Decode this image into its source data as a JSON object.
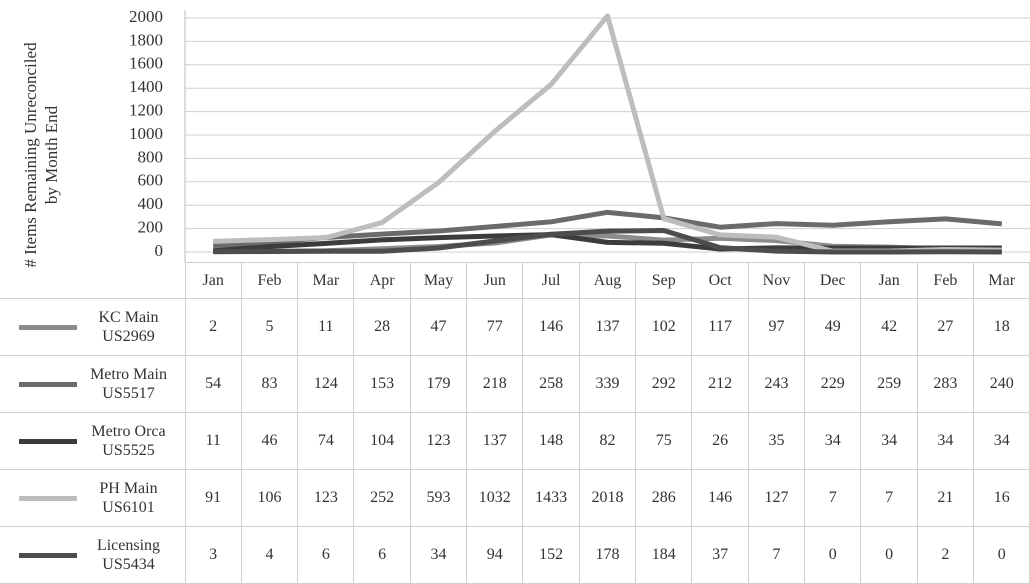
{
  "chart_data": {
    "type": "line",
    "y_label_lines": [
      "# Items Remaining Unreconciled",
      "by Month End"
    ],
    "categories": [
      "Jan",
      "Feb",
      "Mar",
      "Apr",
      "May",
      "Jun",
      "Jul",
      "Aug",
      "Sep",
      "Oct",
      "Nov",
      "Dec",
      "Jan",
      "Feb",
      "Mar"
    ],
    "ylim": [
      0,
      2000
    ],
    "yticks": [
      0,
      200,
      400,
      600,
      800,
      1000,
      1200,
      1400,
      1600,
      1800,
      2000
    ],
    "grid": true,
    "series": [
      {
        "name": "KC Main US2969",
        "color": "#8c8c8c",
        "values": [
          2,
          5,
          11,
          28,
          47,
          77,
          146,
          137,
          102,
          117,
          97,
          49,
          42,
          27,
          18
        ]
      },
      {
        "name": "Metro Main US5517",
        "color": "#6b6b6b",
        "values": [
          54,
          83,
          124,
          153,
          179,
          218,
          258,
          339,
          292,
          212,
          243,
          229,
          259,
          283,
          240
        ]
      },
      {
        "name": "Metro Orca US5525",
        "color": "#3c3c3c",
        "values": [
          11,
          46,
          74,
          104,
          123,
          137,
          148,
          82,
          75,
          26,
          35,
          34,
          34,
          34,
          34
        ]
      },
      {
        "name": "PH Main US6101",
        "color": "#bdbdbd",
        "values": [
          91,
          106,
          123,
          252,
          593,
          1032,
          1433,
          2018,
          286,
          146,
          127,
          7,
          7,
          21,
          16
        ]
      },
      {
        "name": "Licensing US5434",
        "color": "#4d4d4d",
        "values": [
          3,
          4,
          6,
          6,
          34,
          94,
          152,
          178,
          184,
          37,
          7,
          0,
          0,
          2,
          0
        ]
      }
    ]
  }
}
